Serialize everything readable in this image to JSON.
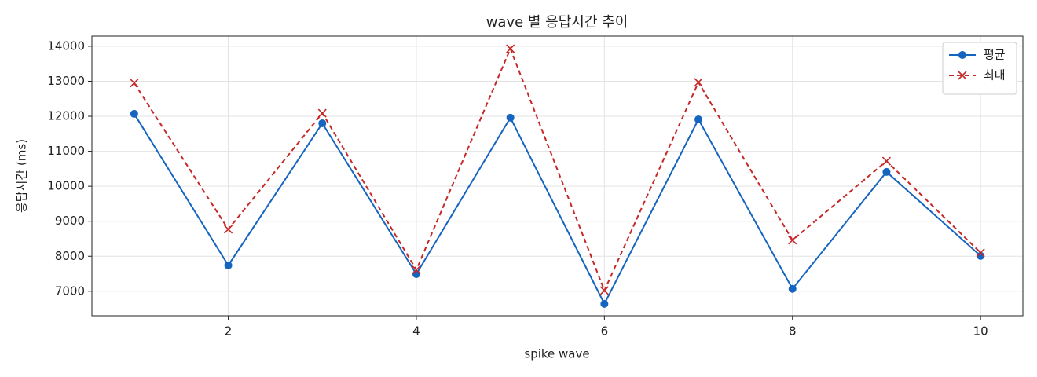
{
  "chart_data": {
    "type": "line",
    "title": "wave 별 응답시간 추이",
    "xlabel": "spike wave",
    "ylabel": "응답시간 (ms)",
    "x": [
      1,
      2,
      3,
      4,
      5,
      6,
      7,
      8,
      9,
      10
    ],
    "series": [
      {
        "name": "평균",
        "color": "#1565c0",
        "marker": "o",
        "linestyle": "solid",
        "values": [
          12070,
          7740,
          11800,
          7490,
          11960,
          6640,
          11910,
          7070,
          10410,
          8010
        ]
      },
      {
        "name": "최대",
        "color": "#c62828",
        "marker": "x",
        "linestyle": "dashed",
        "values": [
          12950,
          8770,
          12090,
          7610,
          13930,
          7020,
          12970,
          8460,
          10720,
          8100
        ]
      }
    ],
    "xlim": [
      0.55,
      10.45
    ],
    "xticks": [
      2,
      4,
      6,
      8,
      10
    ],
    "ylim": [
      6300,
      14290
    ],
    "yticks": [
      7000,
      8000,
      9000,
      10000,
      11000,
      12000,
      13000,
      14000
    ],
    "grid": true,
    "legend": "upper right"
  }
}
